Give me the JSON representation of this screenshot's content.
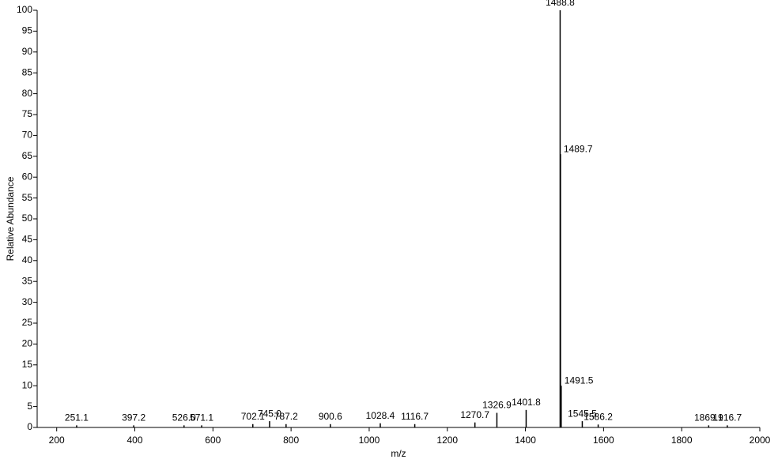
{
  "chart_data": {
    "type": "spectrum",
    "x_axis_label": "m/z",
    "y_axis_label": "Relative Abundance",
    "x": [
      251.1,
      397.2,
      526.0,
      571.1,
      702.1,
      745.0,
      787.2,
      900.6,
      1028.4,
      1116.7,
      1270.7,
      1326.9,
      1401.8,
      1488.8,
      1489.7,
      1491.5,
      1545.5,
      1586.2,
      1869.1,
      1916.7
    ],
    "x_labels": [
      "251.1",
      "397.2",
      "526.0",
      "571.1",
      "702.1",
      "745.0",
      "787.2",
      "900.6",
      "1028.4",
      "1116.7",
      "1270.7",
      "1326.9",
      "1401.8",
      "1488.8",
      "1489.7",
      "1491.5",
      "1545.5",
      "1586.2",
      "1869.1",
      "1916.7"
    ],
    "values": [
      0.5,
      0.5,
      0.5,
      0.5,
      0.8,
      1.5,
      0.8,
      0.8,
      1,
      0.8,
      1.2,
      3.5,
      4.2,
      100,
      65.5,
      10,
      1.5,
      0.7,
      0.5,
      0.5
    ],
    "color": "#000000",
    "xlim": [
      150,
      2000
    ],
    "xticks": [
      200,
      400,
      600,
      800,
      1000,
      1200,
      1400,
      1600,
      1800,
      2000
    ],
    "ylim": [
      0,
      100
    ],
    "yticks": [
      0,
      5,
      10,
      15,
      20,
      25,
      30,
      35,
      40,
      45,
      50,
      55,
      60,
      65,
      70,
      75,
      80,
      85,
      90,
      95,
      100
    ]
  }
}
